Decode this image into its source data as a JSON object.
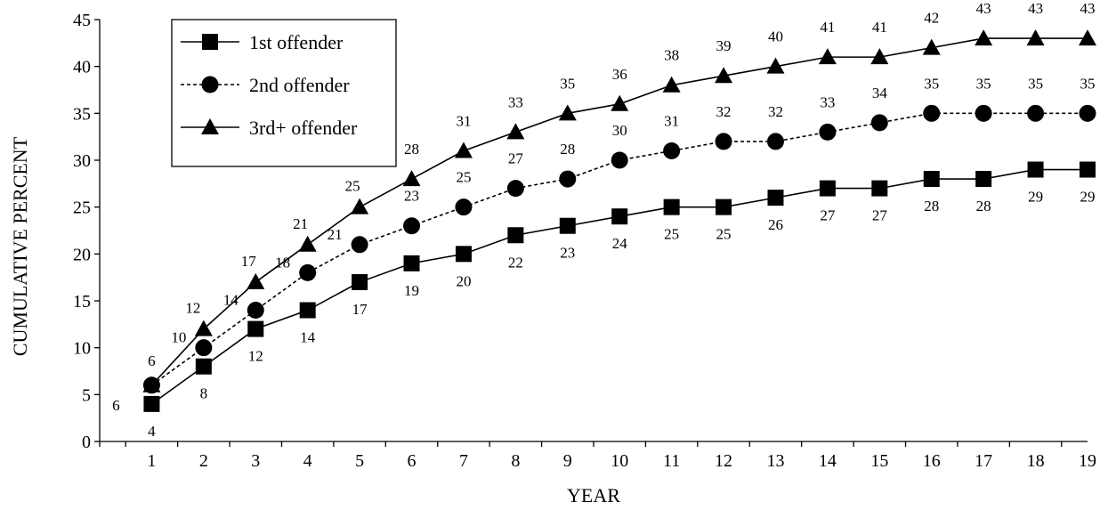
{
  "chart_data": {
    "type": "line",
    "xlabel": "YEAR",
    "ylabel": "CUMULATIVE PERCENT",
    "ylim": [
      0,
      45
    ],
    "y_ticks": [
      0,
      5,
      10,
      15,
      20,
      25,
      30,
      35,
      40,
      45
    ],
    "x": [
      1,
      2,
      3,
      4,
      5,
      6,
      7,
      8,
      9,
      10,
      11,
      12,
      13,
      14,
      15,
      16,
      17,
      18,
      19
    ],
    "grid": false,
    "legend_position": "top-left",
    "series": [
      {
        "name": "1st offender",
        "marker": "square",
        "line": "solid",
        "values": [
          4,
          8,
          12,
          14,
          17,
          19,
          20,
          22,
          23,
          24,
          25,
          25,
          26,
          27,
          27,
          28,
          28,
          29,
          29
        ]
      },
      {
        "name": "2nd offender",
        "marker": "circle",
        "line": "dashed",
        "values": [
          6,
          10,
          14,
          18,
          21,
          23,
          25,
          27,
          28,
          30,
          31,
          32,
          32,
          33,
          34,
          35,
          35,
          35,
          35
        ]
      },
      {
        "name": "3rd+ offender",
        "marker": "triangle",
        "line": "solid",
        "values": [
          6,
          12,
          17,
          21,
          25,
          28,
          31,
          33,
          35,
          36,
          38,
          39,
          40,
          41,
          41,
          42,
          43,
          43,
          43
        ]
      }
    ],
    "colors": {
      "line": "#000000",
      "marker": "#000000"
    }
  }
}
